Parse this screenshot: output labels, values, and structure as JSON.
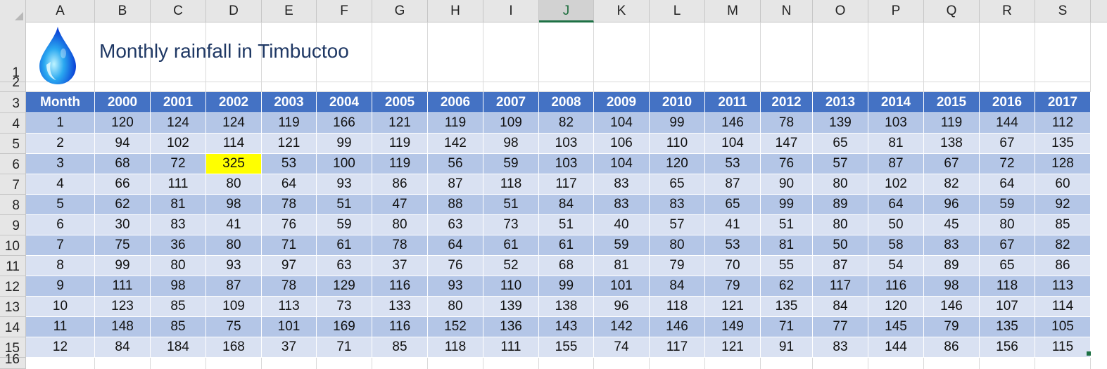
{
  "sheet": {
    "columns": [
      "A",
      "B",
      "C",
      "D",
      "E",
      "F",
      "G",
      "H",
      "I",
      "J",
      "K",
      "L",
      "M",
      "N",
      "O",
      "P",
      "Q",
      "R",
      "S"
    ],
    "selected_column": "J",
    "rows": [
      "1",
      "2",
      "3",
      "4",
      "5",
      "6",
      "7",
      "8",
      "9",
      "10",
      "11",
      "12",
      "13",
      "14",
      "15",
      "16"
    ],
    "title": "Monthly rainfall in Timbuctoo",
    "drop_icon": "raindrop-icon",
    "colors": {
      "header_bg": "#4472C4",
      "band_dark": "#B4C6E7",
      "band_light": "#D9E1F2",
      "highlight": "#FFFF00",
      "title": "#1F3864"
    }
  },
  "table": {
    "headers": [
      "Month",
      "2000",
      "2001",
      "2002",
      "2003",
      "2004",
      "2005",
      "2006",
      "2007",
      "2008",
      "2009",
      "2010",
      "2011",
      "2012",
      "2013",
      "2014",
      "2015",
      "2016",
      "2017"
    ],
    "rows": [
      [
        "1",
        "120",
        "124",
        "124",
        "119",
        "166",
        "121",
        "119",
        "109",
        "82",
        "104",
        "99",
        "146",
        "78",
        "139",
        "103",
        "119",
        "144",
        "112"
      ],
      [
        "2",
        "94",
        "102",
        "114",
        "121",
        "99",
        "119",
        "142",
        "98",
        "103",
        "106",
        "110",
        "104",
        "147",
        "65",
        "81",
        "138",
        "67",
        "135"
      ],
      [
        "3",
        "68",
        "72",
        "325",
        "53",
        "100",
        "119",
        "56",
        "59",
        "103",
        "104",
        "120",
        "53",
        "76",
        "57",
        "87",
        "67",
        "72",
        "128"
      ],
      [
        "4",
        "66",
        "111",
        "80",
        "64",
        "93",
        "86",
        "87",
        "118",
        "117",
        "83",
        "65",
        "87",
        "90",
        "80",
        "102",
        "82",
        "64",
        "60"
      ],
      [
        "5",
        "62",
        "81",
        "98",
        "78",
        "51",
        "47",
        "88",
        "51",
        "84",
        "83",
        "83",
        "65",
        "99",
        "89",
        "64",
        "96",
        "59",
        "92"
      ],
      [
        "6",
        "30",
        "83",
        "41",
        "76",
        "59",
        "80",
        "63",
        "73",
        "51",
        "40",
        "57",
        "41",
        "51",
        "80",
        "50",
        "45",
        "80",
        "85"
      ],
      [
        "7",
        "75",
        "36",
        "80",
        "71",
        "61",
        "78",
        "64",
        "61",
        "61",
        "59",
        "80",
        "53",
        "81",
        "50",
        "58",
        "83",
        "67",
        "82"
      ],
      [
        "8",
        "99",
        "80",
        "93",
        "97",
        "63",
        "37",
        "76",
        "52",
        "68",
        "81",
        "79",
        "70",
        "55",
        "87",
        "54",
        "89",
        "65",
        "86"
      ],
      [
        "9",
        "111",
        "98",
        "87",
        "78",
        "129",
        "116",
        "93",
        "110",
        "99",
        "101",
        "84",
        "79",
        "62",
        "117",
        "116",
        "98",
        "118",
        "113"
      ],
      [
        "10",
        "123",
        "85",
        "109",
        "113",
        "73",
        "133",
        "80",
        "139",
        "138",
        "96",
        "118",
        "121",
        "135",
        "84",
        "120",
        "146",
        "107",
        "114"
      ],
      [
        "11",
        "148",
        "85",
        "75",
        "101",
        "169",
        "116",
        "152",
        "136",
        "143",
        "142",
        "146",
        "149",
        "71",
        "77",
        "145",
        "79",
        "135",
        "105"
      ],
      [
        "12",
        "84",
        "184",
        "168",
        "37",
        "71",
        "85",
        "118",
        "111",
        "155",
        "74",
        "117",
        "121",
        "91",
        "83",
        "144",
        "86",
        "156",
        "115"
      ]
    ],
    "highlighted_cell": {
      "row": 3,
      "column": "2002",
      "value": "325"
    }
  }
}
